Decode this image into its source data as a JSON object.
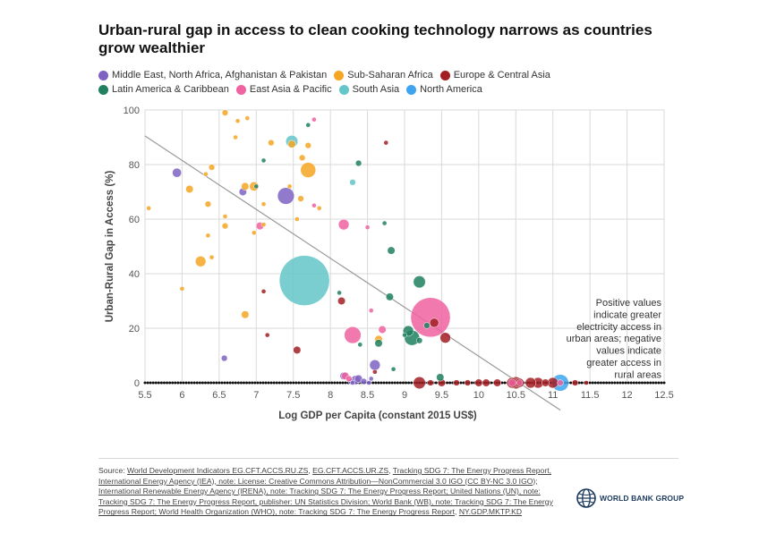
{
  "title": "Urban-rural gap in access to clean cooking technology narrows as countries grow wealthier",
  "legend": [
    {
      "label": "Middle East, North Africa, Afghanistan & Pakistan",
      "color": "#7e62c2"
    },
    {
      "label": "Sub-Saharan Africa",
      "color": "#f5a623"
    },
    {
      "label": "Europe & Central Asia",
      "color": "#a31f24"
    },
    {
      "label": "Latin America & Caribbean",
      "color": "#20805f"
    },
    {
      "label": "East Asia & Pacific",
      "color": "#f062a0"
    },
    {
      "label": "South Asia",
      "color": "#63c6c8"
    },
    {
      "label": "North America",
      "color": "#3ea4ef"
    }
  ],
  "annotation": [
    "Positive values",
    "indicate greater",
    "electricity access in",
    "urban areas; negative",
    "values indicate",
    "greater access in",
    "rural areas"
  ],
  "source": {
    "prefix": "Source: ",
    "parts": [
      {
        "text": "World Development Indicators EG.CFT.ACCS.RU.ZS",
        "u": true
      },
      {
        "text": ", ",
        "u": false
      },
      {
        "text": "EG.CFT.ACCS.UR.ZS",
        "u": true
      },
      {
        "text": ", ",
        "u": false
      },
      {
        "text": "Tracking SDG 7: The Energy Progress Report, International Energy Agency (IEA), note: License: Creative Commons Attribution—NonCommercial 3.0 IGO (CC BY-NC 3.0 IGO); International Renewable Energy Agency (IRENA), note: Tracking SDG 7: The Energy Progress Report; United Nations (UN), note: Tracking SDG 7: The Energy Progress Report, publisher: UN Statistics Division; World Bank (WB), note: Tracking SDG 7: The Energy Progress Report; World Health Organization (WHO), note: Tracking SDG 7: The Energy Progress Report",
        "u": true
      },
      {
        "text": ", ",
        "u": false
      },
      {
        "text": "NY.GDP.MKTP.KD",
        "u": true
      }
    ]
  },
  "logo_text": "WORLD BANK GROUP",
  "chart_data": {
    "type": "scatter",
    "title": "Urban-rural gap in access to clean cooking technology narrows as countries grow wealthier",
    "xlabel": "Log GDP per Capita (constant 2015 US$)",
    "ylabel": "Urban-Rural Gap in Access (%)",
    "xlim": [
      5.5,
      12.5
    ],
    "ylim": [
      0,
      100
    ],
    "x_ticks": [
      "5.5",
      "6",
      "6.5",
      "7",
      "7.5",
      "8",
      "8.5",
      "9",
      "9.5",
      "10",
      "10.5",
      "11",
      "11.5",
      "12",
      "12.5"
    ],
    "y_ticks": [
      "0",
      "20",
      "40",
      "60",
      "80",
      "100"
    ],
    "grid": true,
    "legend_position": "top",
    "trendline": {
      "x": [
        5.5,
        11.1
      ],
      "y": [
        90.5,
        -10
      ]
    },
    "bubble_size_unit": "relative",
    "series": [
      {
        "name": "Middle East, North Africa, Afghanistan & Pakistan",
        "color": "#7e62c2",
        "points": [
          [
            5.93,
            77,
            6
          ],
          [
            6.82,
            70,
            5
          ],
          [
            7.4,
            68.5,
            11
          ],
          [
            6.57,
            9,
            4
          ],
          [
            8.6,
            6.5,
            7
          ],
          [
            8.18,
            2.5,
            5
          ],
          [
            8.34,
            1,
            6
          ],
          [
            8.38,
            1.5,
            5
          ],
          [
            8.45,
            0.5,
            4
          ],
          [
            8.28,
            0.5,
            4
          ],
          [
            8.55,
            1.5,
            3
          ],
          [
            8.52,
            0,
            3
          ],
          [
            8.3,
            0,
            3
          ]
        ]
      },
      {
        "name": "Sub-Saharan Africa",
        "color": "#f5a623",
        "points": [
          [
            6.58,
            99,
            4
          ],
          [
            6.75,
            96,
            3
          ],
          [
            6.88,
            97,
            3
          ],
          [
            7.2,
            88,
            4
          ],
          [
            7.48,
            87.5,
            5
          ],
          [
            7.7,
            87,
            4
          ],
          [
            6.4,
            79,
            4
          ],
          [
            6.72,
            90,
            3
          ],
          [
            7.7,
            78,
            10
          ],
          [
            7.62,
            82.5,
            4
          ],
          [
            6.32,
            76.5,
            3
          ],
          [
            6.85,
            72,
            5
          ],
          [
            6.97,
            72,
            6
          ],
          [
            6.1,
            71,
            5
          ],
          [
            7.6,
            67.5,
            4
          ],
          [
            6.35,
            65.5,
            4
          ],
          [
            7.45,
            72,
            3
          ],
          [
            7.1,
            65.5,
            3
          ],
          [
            6.58,
            61,
            3
          ],
          [
            6.58,
            57.5,
            4
          ],
          [
            6.35,
            54,
            3
          ],
          [
            5.55,
            64,
            3
          ],
          [
            6.97,
            55,
            3
          ],
          [
            6.25,
            44.5,
            7
          ],
          [
            6.4,
            46,
            3
          ],
          [
            6.0,
            34.5,
            3
          ],
          [
            6.85,
            25,
            5
          ],
          [
            8.65,
            16,
            5
          ],
          [
            7.55,
            60,
            3
          ],
          [
            7.1,
            58,
            3
          ],
          [
            7.85,
            64,
            3
          ]
        ]
      },
      {
        "name": "Europe & Central Asia",
        "color": "#a31f24",
        "points": [
          [
            8.15,
            30,
            5
          ],
          [
            7.55,
            12,
            5
          ],
          [
            7.15,
            17.5,
            3
          ],
          [
            7.1,
            33.5,
            3
          ],
          [
            9.55,
            16.5,
            7
          ],
          [
            9.4,
            22,
            6
          ],
          [
            9.2,
            0,
            8
          ],
          [
            10.0,
            0,
            5
          ],
          [
            10.45,
            0,
            7
          ],
          [
            10.5,
            0,
            8
          ],
          [
            10.8,
            0,
            7
          ],
          [
            10.7,
            0,
            7
          ],
          [
            10.55,
            0,
            6
          ],
          [
            10.9,
            0,
            5
          ],
          [
            11.0,
            0,
            7
          ],
          [
            10.25,
            0,
            5
          ],
          [
            10.1,
            0,
            5
          ],
          [
            9.7,
            0,
            4
          ],
          [
            9.85,
            0,
            4
          ],
          [
            9.5,
            0,
            5
          ],
          [
            9.35,
            0,
            4
          ],
          [
            8.75,
            88,
            3
          ],
          [
            8.6,
            4,
            3
          ],
          [
            11.3,
            0,
            4
          ],
          [
            11.45,
            0,
            3
          ]
        ]
      },
      {
        "name": "Latin America & Caribbean",
        "color": "#20805f",
        "points": [
          [
            8.38,
            80.5,
            4
          ],
          [
            9.2,
            37,
            8
          ],
          [
            8.8,
            31.5,
            5
          ],
          [
            8.82,
            48.5,
            5
          ],
          [
            8.73,
            58.5,
            3
          ],
          [
            8.12,
            33,
            3
          ],
          [
            9.05,
            19,
            7
          ],
          [
            9.1,
            16.5,
            10
          ],
          [
            8.65,
            14.5,
            5
          ],
          [
            8.4,
            14,
            3
          ],
          [
            9.0,
            17.5,
            3
          ],
          [
            9.48,
            2,
            5
          ],
          [
            8.85,
            5,
            3
          ],
          [
            7.1,
            81.5,
            3
          ],
          [
            7.7,
            94.5,
            3
          ],
          [
            7.0,
            72,
            3
          ],
          [
            9.3,
            21,
            4
          ],
          [
            9.2,
            15.5,
            4
          ]
        ]
      },
      {
        "name": "East Asia & Pacific",
        "color": "#f062a0",
        "points": [
          [
            9.35,
            24,
            26
          ],
          [
            8.3,
            17.5,
            11
          ],
          [
            8.18,
            58,
            7
          ],
          [
            7.05,
            57.5,
            5
          ],
          [
            8.7,
            19.5,
            5
          ],
          [
            8.2,
            2.5,
            5
          ],
          [
            8.25,
            1.5,
            4
          ],
          [
            8.55,
            26.5,
            3
          ],
          [
            10.45,
            0,
            5
          ],
          [
            10.55,
            0,
            4
          ],
          [
            11.1,
            0,
            4
          ],
          [
            7.78,
            96.5,
            3
          ],
          [
            8.5,
            57,
            3
          ],
          [
            7.78,
            65,
            3
          ]
        ]
      },
      {
        "name": "South Asia",
        "color": "#63c6c8",
        "points": [
          [
            7.65,
            37.5,
            33
          ],
          [
            7.48,
            88.5,
            8
          ],
          [
            8.3,
            73.5,
            4
          ]
        ]
      },
      {
        "name": "North America",
        "color": "#3ea4ef",
        "points": [
          [
            11.1,
            0,
            11
          ]
        ]
      }
    ],
    "baseline_dots": {
      "x_range": [
        5.5,
        12.5
      ],
      "y": 0,
      "color": "#111111",
      "count": 190
    }
  }
}
